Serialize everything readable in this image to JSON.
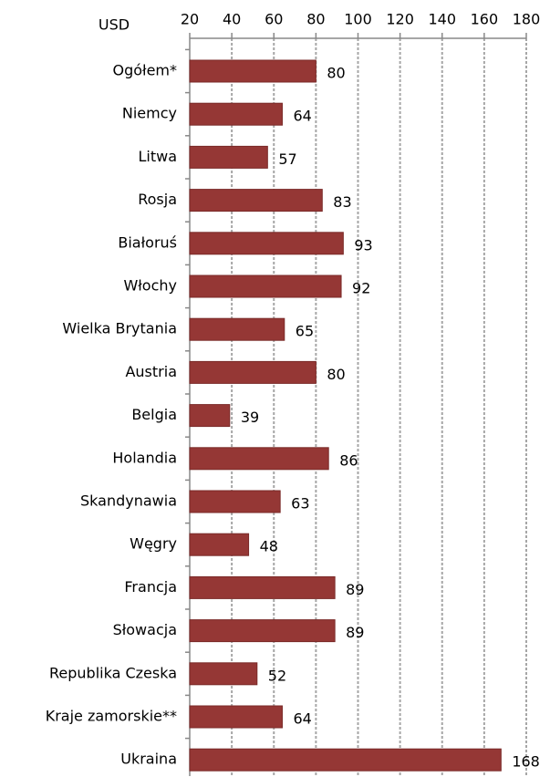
{
  "chart_data": {
    "type": "bar",
    "orientation": "horizontal",
    "x_label": "USD",
    "categories": [
      "Ogółem*",
      "Niemcy",
      "Litwa",
      "Rosja",
      "Białoruś",
      "Włochy",
      "Wielka Brytania",
      "Austria",
      "Belgia",
      "Holandia",
      "Skandynawia",
      "Węgry",
      "Francja",
      "Słowacja",
      "Republika Czeska",
      "Kraje zamorskie**",
      "Ukraina"
    ],
    "values": [
      80,
      64,
      57,
      83,
      93,
      92,
      65,
      80,
      39,
      86,
      63,
      48,
      89,
      89,
      52,
      64,
      168
    ],
    "color": "#953735",
    "xlim": [
      20,
      180
    ],
    "xticks": [
      20,
      40,
      60,
      80,
      100,
      120,
      140,
      160,
      180
    ],
    "grid": true
  }
}
